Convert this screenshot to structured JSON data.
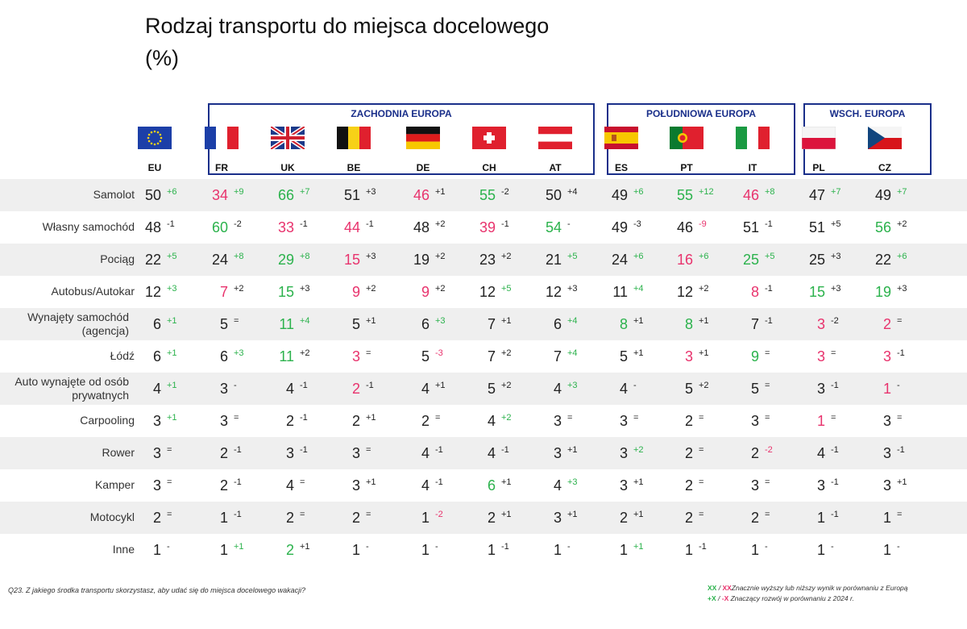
{
  "title": "Rodzaj transportu do miejsca docelowego",
  "subtitle": "(%)",
  "groups": [
    {
      "label": "ZACHODNIA EUROPA"
    },
    {
      "label": "POŁUDNIOWA EUROPA"
    },
    {
      "label": "WSCH. EUROPA"
    }
  ],
  "colors": {
    "high": "#2bb24c",
    "low": "#e8336d",
    "neutral": "#222222",
    "group_border": "#1a2f8a",
    "stripe": "#efefef"
  },
  "chart_data": {
    "type": "table",
    "countries": [
      "EU",
      "FR",
      "UK",
      "BE",
      "DE",
      "CH",
      "AT",
      "ES",
      "PT",
      "IT",
      "PL",
      "CZ"
    ],
    "rows": [
      {
        "label": "Samolot",
        "values": [
          50,
          34,
          66,
          51,
          46,
          55,
          50,
          49,
          55,
          46,
          47,
          49
        ],
        "value_colors": [
          "n",
          "l",
          "h",
          "n",
          "l",
          "h",
          "n",
          "n",
          "h",
          "l",
          "n",
          "n"
        ],
        "changes": [
          "+6",
          "+9",
          "+7",
          "+3",
          "+1",
          "-2",
          "+4",
          "+6",
          "+12",
          "+8",
          "+7",
          "+7"
        ],
        "change_colors": [
          "h",
          "h",
          "h",
          "n",
          "n",
          "n",
          "n",
          "h",
          "h",
          "h",
          "h",
          "h"
        ]
      },
      {
        "label": "Własny samochód",
        "values": [
          48,
          60,
          33,
          44,
          48,
          39,
          54,
          49,
          46,
          51,
          51,
          56
        ],
        "value_colors": [
          "n",
          "h",
          "l",
          "l",
          "n",
          "l",
          "h",
          "n",
          "n",
          "n",
          "n",
          "h"
        ],
        "changes": [
          "-1",
          "-2",
          "-1",
          "-1",
          "+2",
          "-1",
          "-",
          "-3",
          "-9",
          "-1",
          "+5",
          "+2"
        ],
        "change_colors": [
          "n",
          "n",
          "n",
          "n",
          "n",
          "n",
          "n",
          "n",
          "l",
          "n",
          "n",
          "n"
        ]
      },
      {
        "label": "Pociąg",
        "values": [
          22,
          24,
          29,
          15,
          19,
          23,
          21,
          24,
          16,
          25,
          25,
          22
        ],
        "value_colors": [
          "n",
          "n",
          "h",
          "l",
          "n",
          "n",
          "n",
          "n",
          "l",
          "h",
          "n",
          "n"
        ],
        "changes": [
          "+5",
          "+8",
          "+8",
          "+3",
          "+2",
          "+2",
          "+5",
          "+6",
          "+6",
          "+5",
          "+3",
          "+6"
        ],
        "change_colors": [
          "h",
          "h",
          "h",
          "n",
          "n",
          "n",
          "h",
          "h",
          "h",
          "h",
          "n",
          "h"
        ]
      },
      {
        "label": "Autobus/Autokar",
        "values": [
          12,
          7,
          15,
          9,
          9,
          12,
          12,
          11,
          12,
          8,
          15,
          19
        ],
        "value_colors": [
          "n",
          "l",
          "h",
          "l",
          "l",
          "n",
          "n",
          "n",
          "n",
          "l",
          "h",
          "h"
        ],
        "changes": [
          "+3",
          "+2",
          "+3",
          "+2",
          "+2",
          "+5",
          "+3",
          "+4",
          "+2",
          "-1",
          "+3",
          "+3"
        ],
        "change_colors": [
          "h",
          "n",
          "n",
          "n",
          "n",
          "h",
          "n",
          "h",
          "n",
          "n",
          "n",
          "n"
        ]
      },
      {
        "label": "Wynajęty samochód (agencja)",
        "values": [
          6,
          5,
          11,
          5,
          6,
          7,
          6,
          8,
          8,
          7,
          3,
          2
        ],
        "value_colors": [
          "n",
          "n",
          "h",
          "n",
          "n",
          "n",
          "n",
          "h",
          "h",
          "n",
          "l",
          "l"
        ],
        "changes": [
          "+1",
          "=",
          "+4",
          "+1",
          "+3",
          "+1",
          "+4",
          "+1",
          "+1",
          "-1",
          "-2",
          "="
        ],
        "change_colors": [
          "h",
          "n",
          "h",
          "n",
          "h",
          "n",
          "h",
          "n",
          "n",
          "n",
          "n",
          "n"
        ]
      },
      {
        "label": "Łódź",
        "values": [
          6,
          6,
          11,
          3,
          5,
          7,
          7,
          5,
          3,
          9,
          3,
          3
        ],
        "value_colors": [
          "n",
          "n",
          "h",
          "l",
          "n",
          "n",
          "n",
          "n",
          "l",
          "h",
          "l",
          "l"
        ],
        "changes": [
          "+1",
          "+3",
          "+2",
          "=",
          "-3",
          "+2",
          "+4",
          "+1",
          "+1",
          "=",
          "=",
          "-1"
        ],
        "change_colors": [
          "h",
          "h",
          "n",
          "n",
          "l",
          "n",
          "h",
          "n",
          "n",
          "n",
          "n",
          "n"
        ]
      },
      {
        "label": "Auto wynajęte od osób prywatnych",
        "values": [
          4,
          3,
          4,
          2,
          4,
          5,
          4,
          4,
          5,
          5,
          3,
          1
        ],
        "value_colors": [
          "n",
          "n",
          "n",
          "l",
          "n",
          "n",
          "n",
          "n",
          "n",
          "n",
          "n",
          "l"
        ],
        "changes": [
          "+1",
          "-",
          "-1",
          "-1",
          "+1",
          "+2",
          "+3",
          "-",
          "+2",
          "=",
          "-1",
          "-"
        ],
        "change_colors": [
          "h",
          "n",
          "n",
          "n",
          "n",
          "n",
          "h",
          "n",
          "n",
          "n",
          "n",
          "n"
        ]
      },
      {
        "label": "Carpooling",
        "values": [
          3,
          3,
          2,
          2,
          2,
          4,
          3,
          3,
          2,
          3,
          1,
          3
        ],
        "value_colors": [
          "n",
          "n",
          "n",
          "n",
          "n",
          "n",
          "n",
          "n",
          "n",
          "n",
          "l",
          "n"
        ],
        "changes": [
          "+1",
          "=",
          "-1",
          "+1",
          "=",
          "+2",
          "=",
          "=",
          "=",
          "=",
          "=",
          "="
        ],
        "change_colors": [
          "h",
          "n",
          "n",
          "n",
          "n",
          "h",
          "n",
          "n",
          "n",
          "n",
          "n",
          "n"
        ]
      },
      {
        "label": "Rower",
        "values": [
          3,
          2,
          3,
          3,
          4,
          4,
          3,
          3,
          2,
          2,
          4,
          3
        ],
        "value_colors": [
          "n",
          "n",
          "n",
          "n",
          "n",
          "n",
          "n",
          "n",
          "n",
          "n",
          "n",
          "n"
        ],
        "changes": [
          "=",
          "-1",
          "-1",
          "=",
          "-1",
          "-1",
          "+1",
          "+2",
          "=",
          "-2",
          "-1",
          "-1"
        ],
        "change_colors": [
          "n",
          "n",
          "n",
          "n",
          "n",
          "n",
          "n",
          "h",
          "n",
          "l",
          "n",
          "n"
        ]
      },
      {
        "label": "Kamper",
        "values": [
          3,
          2,
          4,
          3,
          4,
          6,
          4,
          3,
          2,
          3,
          3,
          3
        ],
        "value_colors": [
          "n",
          "n",
          "n",
          "n",
          "n",
          "h",
          "n",
          "n",
          "n",
          "n",
          "n",
          "n"
        ],
        "changes": [
          "=",
          "-1",
          "=",
          "+1",
          "-1",
          "+1",
          "+3",
          "+1",
          "=",
          "=",
          "-1",
          "+1"
        ],
        "change_colors": [
          "n",
          "n",
          "n",
          "n",
          "n",
          "n",
          "h",
          "n",
          "n",
          "n",
          "n",
          "n"
        ]
      },
      {
        "label": "Motocykl",
        "values": [
          2,
          1,
          2,
          2,
          1,
          2,
          3,
          2,
          2,
          2,
          1,
          1
        ],
        "value_colors": [
          "n",
          "n",
          "n",
          "n",
          "n",
          "n",
          "n",
          "n",
          "n",
          "n",
          "n",
          "n"
        ],
        "changes": [
          "=",
          "-1",
          "=",
          "=",
          "-2",
          "+1",
          "+1",
          "+1",
          "=",
          "=",
          "-1",
          "="
        ],
        "change_colors": [
          "n",
          "n",
          "n",
          "n",
          "l",
          "n",
          "n",
          "n",
          "n",
          "n",
          "n",
          "n"
        ]
      },
      {
        "label": "Inne",
        "values": [
          1,
          1,
          2,
          1,
          1,
          1,
          1,
          1,
          1,
          1,
          1,
          1
        ],
        "value_colors": [
          "n",
          "n",
          "h",
          "n",
          "n",
          "n",
          "n",
          "n",
          "n",
          "n",
          "n",
          "n"
        ],
        "changes": [
          "-",
          "+1",
          "+1",
          "-",
          "-",
          "-1",
          "-",
          "+1",
          "-1",
          "-",
          "-",
          "-"
        ],
        "change_colors": [
          "n",
          "h",
          "n",
          "n",
          "n",
          "n",
          "n",
          "h",
          "n",
          "n",
          "n",
          "n"
        ]
      }
    ]
  },
  "footer": {
    "question": "Q23. Z jakiego środka transportu skorzystasz, aby udać się do miejsca docelowego wakacji?",
    "legend_marker1_high": "XX",
    "legend_sep": " / ",
    "legend_marker1_low": "XX",
    "legend_text1": " Znacznie wyższy lub niższy wynik w porównaniu z Europą",
    "legend_marker2_high": "+X",
    "legend_marker2_low": "-X",
    "legend_text2": " Znaczący rozwój w porównaniu z 2024 r."
  }
}
